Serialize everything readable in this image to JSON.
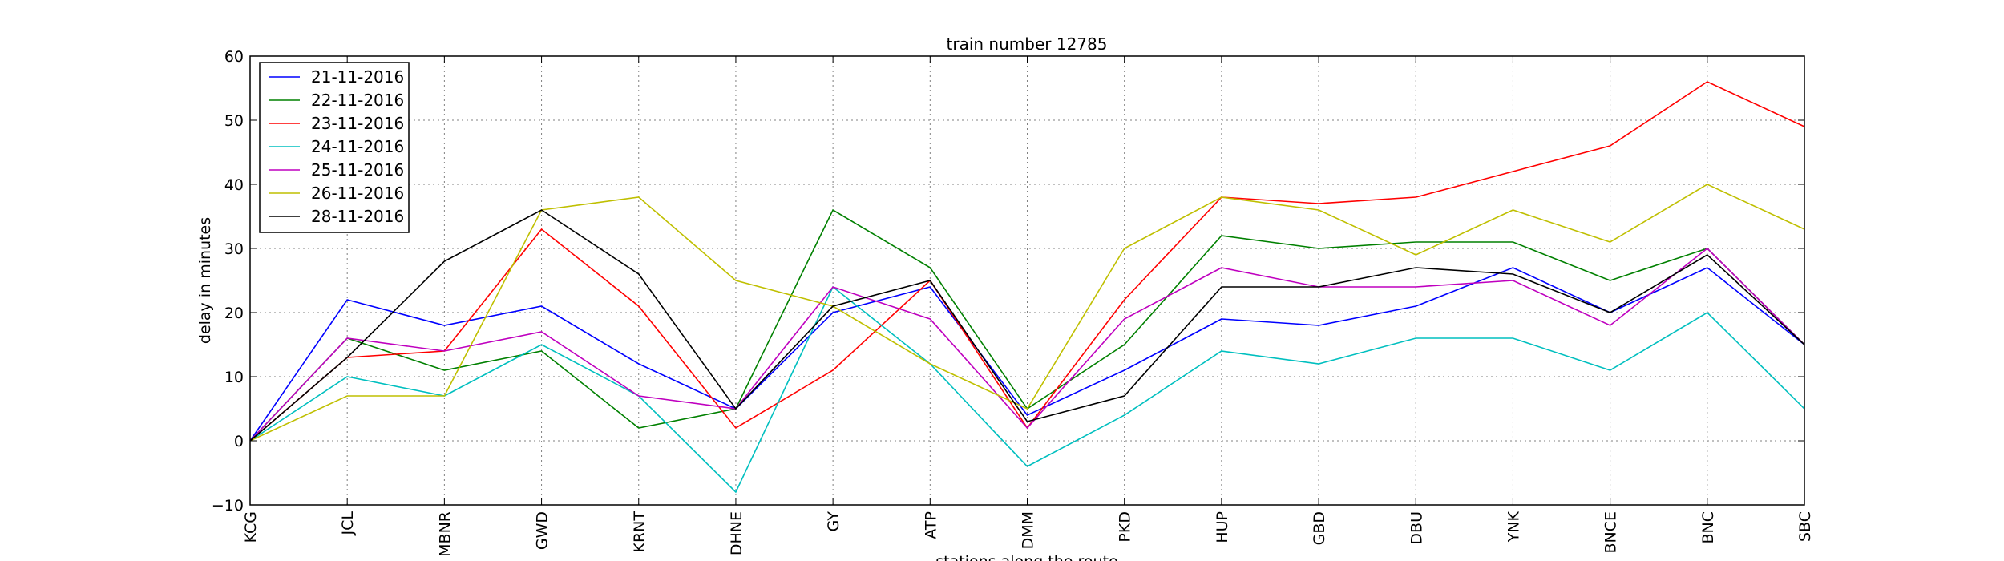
{
  "chart_data": {
    "type": "line",
    "title": "train number 12785",
    "xlabel": "stations along the route",
    "ylabel": "delay in minutes",
    "ylim": [
      -10,
      60
    ],
    "yticks": [
      -10,
      0,
      10,
      20,
      30,
      40,
      50,
      60
    ],
    "grid": true,
    "legend_position": "top-left",
    "categories": [
      "KCG",
      "JCL",
      "MBNR",
      "GWD",
      "KRNT",
      "DHNE",
      "GY",
      "ATP",
      "DMM",
      "PKD",
      "HUP",
      "GBD",
      "DBU",
      "YNK",
      "BNCE",
      "BNC",
      "SBC"
    ],
    "series": [
      {
        "name": "21-11-2016",
        "color": "#0000ff",
        "values": [
          0,
          22,
          18,
          21,
          12,
          5,
          20,
          24,
          4,
          11,
          19,
          18,
          21,
          27,
          20,
          27,
          15
        ]
      },
      {
        "name": "22-11-2016",
        "color": "#008000",
        "values": [
          0,
          16,
          11,
          14,
          2,
          5,
          36,
          27,
          5,
          15,
          32,
          30,
          31,
          31,
          25,
          30,
          15
        ]
      },
      {
        "name": "23-11-2016",
        "color": "#ff0000",
        "values": [
          0,
          13,
          14,
          33,
          21,
          2,
          11,
          25,
          2,
          22,
          38,
          37,
          38,
          42,
          46,
          56,
          49
        ]
      },
      {
        "name": "24-11-2016",
        "color": "#00bfbf",
        "values": [
          0,
          10,
          7,
          15,
          7,
          -8,
          24,
          12,
          -4,
          4,
          14,
          12,
          16,
          16,
          11,
          20,
          5
        ]
      },
      {
        "name": "25-11-2016",
        "color": "#bf00bf",
        "values": [
          0,
          16,
          14,
          17,
          7,
          5,
          24,
          19,
          2,
          19,
          27,
          24,
          24,
          25,
          18,
          30,
          15
        ]
      },
      {
        "name": "26-11-2016",
        "color": "#bfbf00",
        "values": [
          0,
          7,
          7,
          36,
          38,
          25,
          21,
          12,
          5,
          30,
          38,
          36,
          29,
          36,
          31,
          40,
          33
        ]
      },
      {
        "name": "28-11-2016",
        "color": "#000000",
        "values": [
          0,
          13,
          28,
          36,
          26,
          5,
          21,
          25,
          3,
          7,
          24,
          24,
          27,
          26,
          20,
          29,
          15
        ]
      }
    ]
  }
}
